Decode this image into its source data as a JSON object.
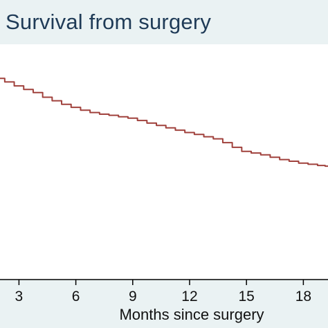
{
  "chart_data": {
    "type": "line",
    "title": "Survival from surgery",
    "xlabel": "Months since surgery",
    "ylabel": "",
    "xlim": [
      2.0,
      19.3
    ],
    "ylim": [
      0.0,
      1.0
    ],
    "xticks": [
      "3",
      "6",
      "9",
      "12",
      "15",
      "18"
    ],
    "xtick_values": [
      3,
      6,
      9,
      12,
      15,
      18
    ],
    "grid": false,
    "series": [
      {
        "x": [
          2.0,
          2.5,
          3.0,
          3.5,
          4.0,
          4.5,
          5.0,
          5.5,
          6.0,
          6.5,
          7.0,
          7.5,
          8.0,
          8.5,
          9.0,
          9.5,
          10.0,
          10.5,
          11.0,
          11.5,
          12.0,
          12.5,
          13.0,
          13.5,
          14.0,
          14.5,
          15.0,
          15.5,
          16.0,
          16.5,
          17.0,
          17.5,
          18.0,
          18.5,
          19.0,
          19.3
        ],
        "y": [
          0.855,
          0.84,
          0.823,
          0.808,
          0.795,
          0.775,
          0.76,
          0.745,
          0.732,
          0.72,
          0.71,
          0.703,
          0.698,
          0.692,
          0.686,
          0.676,
          0.665,
          0.655,
          0.645,
          0.635,
          0.625,
          0.617,
          0.607,
          0.598,
          0.582,
          0.562,
          0.545,
          0.538,
          0.53,
          0.52,
          0.51,
          0.503,
          0.495,
          0.49,
          0.485,
          0.482
        ],
        "color": "#a0413c"
      }
    ],
    "plot_background": "#ffffff",
    "outer_background": "#eaf2f3",
    "axis_color": "#000000",
    "title_color": "#1f3b57"
  }
}
